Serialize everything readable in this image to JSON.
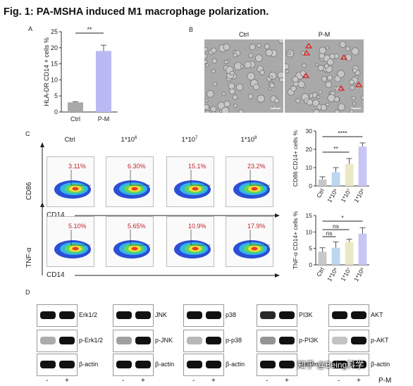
{
  "figure_title": "Fig. 1: PA-MSHA induced M1 macrophage polarization.",
  "panels": {
    "a": "A",
    "b": "B",
    "c": "C",
    "d": "D"
  },
  "panel_b": {
    "ctrl": "Ctrl",
    "pm": "P-M"
  },
  "flow": {
    "conditions": [
      "Ctrl",
      "1*10",
      "1*10",
      "1*10"
    ],
    "superscripts": [
      "",
      "6",
      "7",
      "8"
    ],
    "row1_pcts": [
      "3.11%",
      "6.30%",
      "15.1%",
      "23.2%"
    ],
    "row2_pcts": [
      "5.10%",
      "5.65%",
      "10.9%",
      "17.9%"
    ],
    "row1_ylabel": "CD86",
    "row2_ylabel": "TNF-α",
    "xlabel": "CD14"
  },
  "chart_data": [
    {
      "type": "bar",
      "categories": [
        "Ctrl",
        "P-M"
      ],
      "values": [
        3,
        19
      ],
      "errors": [
        0.2,
        1.8
      ],
      "ylabel": "HLA-DR  CD14 + cells %",
      "ylim": [
        0,
        25
      ],
      "yticks": [
        "0",
        "5",
        "10",
        "15",
        "20",
        "25"
      ],
      "colors": [
        "#a9a9a9",
        "#b9b9f3"
      ],
      "significance": [
        {
          "pair": [
            0,
            1
          ],
          "label": "**"
        }
      ]
    },
    {
      "type": "bar",
      "categories": [
        "Ctrl",
        "1*10⁶",
        "1*10⁷",
        "1*10⁸"
      ],
      "values": [
        3.5,
        7.5,
        12,
        21.5
      ],
      "errors": [
        1.5,
        2.5,
        3,
        2
      ],
      "ylabel": "CD86 CD14+ cells %",
      "ylim": [
        0,
        30
      ],
      "yticks": [
        "0",
        "10",
        "20",
        "30"
      ],
      "colors": [
        "#c8c8c8",
        "#bcd6f2",
        "#ebe8c6",
        "#c8c6f4"
      ],
      "significance": [
        {
          "pair": [
            0,
            3
          ],
          "label": "****"
        },
        {
          "pair": [
            0,
            2
          ],
          "label": "**"
        }
      ]
    },
    {
      "type": "bar",
      "categories": [
        "Ctrl",
        "1*10⁶",
        "1*10⁷",
        "1*10⁸"
      ],
      "values": [
        4,
        5.2,
        7,
        9.5
      ],
      "errors": [
        1.2,
        1.8,
        0.8,
        1.8
      ],
      "ylabel": "TNF-α  CD14+ cells %",
      "ylim": [
        0,
        15
      ],
      "yticks": [
        "0",
        "5",
        "10",
        "15"
      ],
      "colors": [
        "#c8c8c8",
        "#bcd6f2",
        "#ebe8c6",
        "#c8c6f4"
      ],
      "significance": [
        {
          "pair": [
            0,
            3
          ],
          "label": "*"
        },
        {
          "pair": [
            0,
            2
          ],
          "label": "ns"
        },
        {
          "pair": [
            0,
            1
          ],
          "label": "ns"
        }
      ]
    }
  ],
  "western": {
    "groups": [
      {
        "rows": [
          "Erk1/2",
          "p-Erk1/2",
          "β-actin"
        ]
      },
      {
        "rows": [
          "JNK",
          "p-JNK",
          "β-actin"
        ]
      },
      {
        "rows": [
          "p38",
          "p-p38",
          "β-actin"
        ]
      },
      {
        "rows": [
          "PI3K",
          "p-PI3K",
          "β-actin"
        ]
      },
      {
        "rows": [
          "AKT",
          "p-AKT",
          "β-actin"
        ]
      }
    ],
    "minus": "-",
    "plus": "+",
    "pm_label": "P-M"
  },
  "watermark": "知乎 @Being科学"
}
